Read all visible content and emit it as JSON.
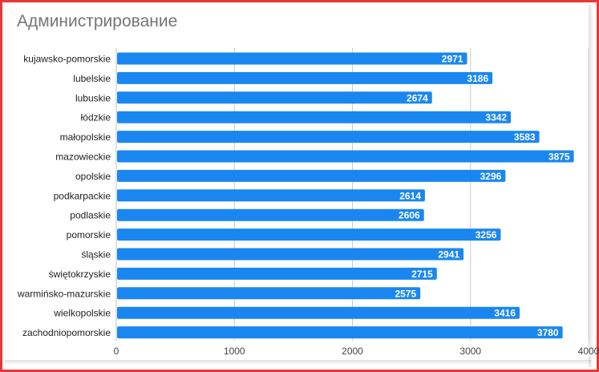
{
  "chart_data": {
    "type": "bar",
    "orientation": "horizontal",
    "title": "Администрирование",
    "categories": [
      "kujawsko-pomorskie",
      "lubelskie",
      "lubuskie",
      "łódzkie",
      "małopolskie",
      "mazowieckie",
      "opolskie",
      "podkarpackie",
      "podlaskie",
      "pomorskie",
      "śląskie",
      "świętokrzyskie",
      "warmińsko-mazurskie",
      "wielkopolskie",
      "zachodniopomorskie"
    ],
    "values": [
      2971,
      3186,
      2674,
      3342,
      3583,
      3875,
      3296,
      2614,
      2606,
      3256,
      2941,
      2715,
      2575,
      3416,
      3780
    ],
    "xlim": [
      0,
      4000
    ],
    "xticks": [
      "0",
      "1000",
      "2000",
      "3000",
      "4000"
    ],
    "grid": true,
    "data_labels": true,
    "colors": {
      "bar": "#1a87f0",
      "grid": "#cccccc",
      "frame": "#e53935",
      "title": "#757575"
    }
  }
}
